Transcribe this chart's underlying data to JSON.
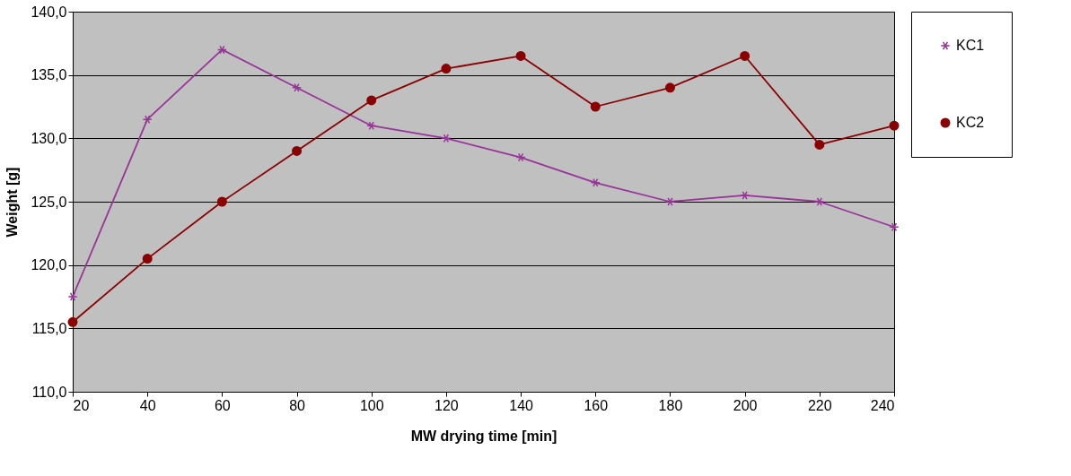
{
  "chart_data": {
    "type": "line",
    "xlabel": "MW drying time [min]",
    "ylabel": "Weight [g]",
    "x": [
      20,
      40,
      60,
      80,
      100,
      120,
      140,
      160,
      180,
      200,
      220,
      240
    ],
    "xlim": [
      20,
      240
    ],
    "xticks": [
      20,
      40,
      60,
      80,
      100,
      120,
      140,
      160,
      180,
      200,
      220,
      240
    ],
    "ylim": [
      110,
      140
    ],
    "yticks": [
      {
        "value": 110,
        "label": "110,0"
      },
      {
        "value": 115,
        "label": "115,0"
      },
      {
        "value": 120,
        "label": "120,0"
      },
      {
        "value": 125,
        "label": "125,0"
      },
      {
        "value": 130,
        "label": "130,0"
      },
      {
        "value": 135,
        "label": "135,0"
      },
      {
        "value": 140,
        "label": "140,0"
      }
    ],
    "grid": "y",
    "legend": "right",
    "line_style": "solid",
    "series": [
      {
        "name": "KC1",
        "color": "#993399",
        "marker": "cross",
        "values": [
          117.5,
          131.5,
          137,
          134,
          131,
          130,
          128.5,
          126.5,
          125,
          125.5,
          125,
          123
        ]
      },
      {
        "name": "KC2",
        "color": "#8b0000",
        "marker": "circle",
        "values": [
          115.5,
          120.5,
          125,
          129,
          133,
          135.5,
          136.5,
          132.5,
          134,
          136.5,
          129.5,
          131
        ]
      }
    ]
  }
}
